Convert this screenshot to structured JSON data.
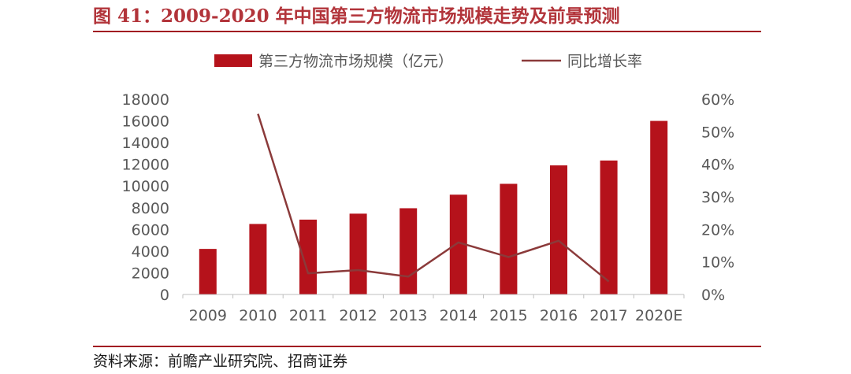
{
  "figure": {
    "title": "图 41：2009-2020 年中国第三方物流市场规模走势及前景预测",
    "source": "资料来源：前瞻产业研究院、招商证券"
  },
  "colors": {
    "bar": "#b5121b",
    "line": "#8b3a3a",
    "title": "#b2343a",
    "rule": "#a11a22",
    "text": "#595959",
    "axis": "#bfbfbf"
  },
  "chart_data": {
    "type": "bar",
    "categories": [
      "2009",
      "2010",
      "2011",
      "2012",
      "2013",
      "2014",
      "2015",
      "2016",
      "2017",
      "2020E"
    ],
    "series": [
      {
        "name": "第三方物流市场规模（亿元）",
        "type": "bar",
        "axis": "left",
        "values": [
          4200,
          6500,
          6900,
          7450,
          7950,
          9200,
          10200,
          11900,
          12350,
          16000
        ]
      },
      {
        "name": "同比增长率",
        "type": "line",
        "axis": "right",
        "values": [
          null,
          0.555,
          0.065,
          0.075,
          0.055,
          0.16,
          0.115,
          0.165,
          0.04,
          null
        ]
      }
    ],
    "y_left": {
      "min": 0,
      "max": 18000,
      "ticks": [
        "0",
        "2000",
        "4000",
        "6000",
        "8000",
        "10000",
        "12000",
        "14000",
        "16000",
        "18000"
      ]
    },
    "y_right": {
      "min": 0,
      "max": 0.6,
      "ticks": [
        "0%",
        "10%",
        "20%",
        "30%",
        "40%",
        "50%",
        "60%"
      ]
    },
    "legend_position": "top",
    "grid": false
  }
}
